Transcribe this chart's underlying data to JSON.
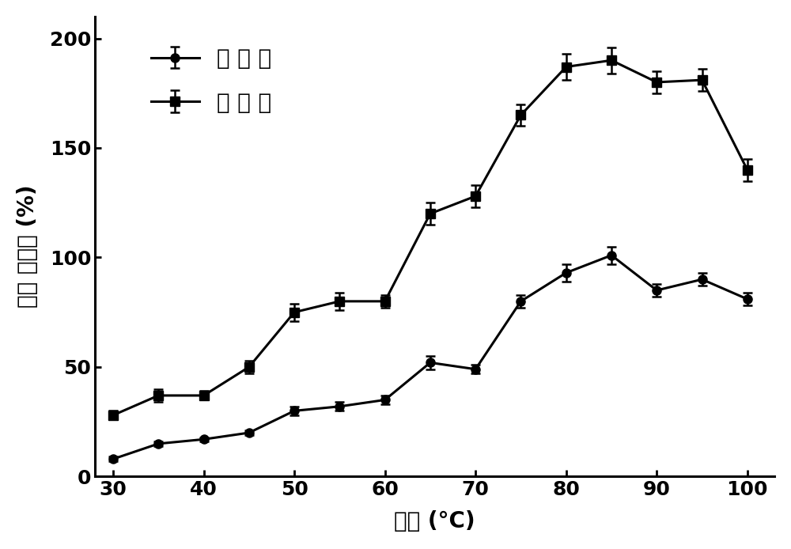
{
  "x": [
    30,
    35,
    40,
    45,
    50,
    55,
    60,
    65,
    70,
    75,
    80,
    85,
    90,
    95,
    100
  ],
  "wild_y": [
    8,
    15,
    17,
    20,
    30,
    32,
    35,
    52,
    49,
    80,
    93,
    101,
    85,
    90,
    81
  ],
  "wild_err": [
    1,
    1,
    1,
    1,
    2,
    2,
    2,
    3,
    2,
    3,
    4,
    4,
    3,
    3,
    3
  ],
  "mutant_y": [
    28,
    37,
    37,
    50,
    75,
    80,
    80,
    120,
    128,
    165,
    187,
    190,
    180,
    181,
    140
  ],
  "mutant_err": [
    2,
    3,
    2,
    3,
    4,
    4,
    3,
    5,
    5,
    5,
    6,
    6,
    5,
    5,
    5
  ],
  "xlabel": "温度 (°C)",
  "ylabel": "相对 酶活力 (%)",
  "legend_wild": "野 生 酶",
  "legend_mutant": "突 变 酶",
  "xlim": [
    28,
    103
  ],
  "ylim": [
    0,
    210
  ],
  "yticks": [
    0,
    50,
    100,
    150,
    200
  ],
  "xticks": [
    30,
    40,
    50,
    60,
    70,
    80,
    90,
    100
  ],
  "line_color": "#000000",
  "bg_color": "#ffffff",
  "label_fontsize": 20,
  "tick_fontsize": 18,
  "legend_fontsize": 20
}
